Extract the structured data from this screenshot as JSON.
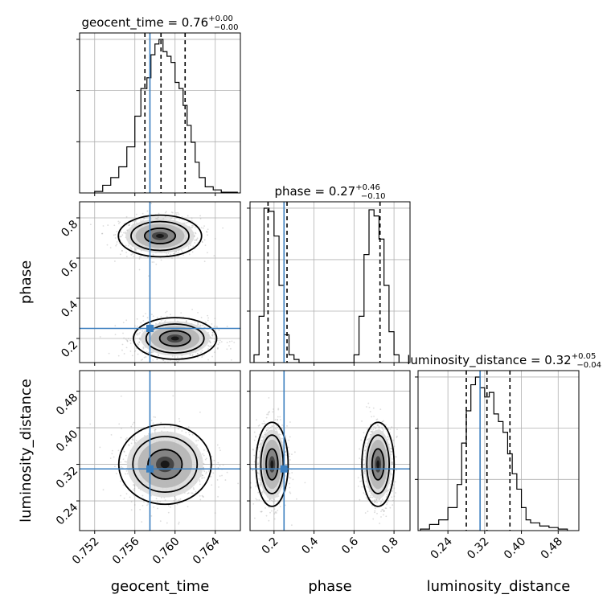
{
  "chart_data": {
    "type": "corner",
    "parameters": [
      "geocent_time",
      "phase",
      "luminosity_distance"
    ],
    "axis_labels": {
      "geocent_time": "geocent_time",
      "phase": "phase",
      "luminosity_distance": "luminosity_distance"
    },
    "titles": [
      {
        "param": "geocent_time",
        "text": "geocent_time = 0.76",
        "plus": "+0.00",
        "minus": "−0.00"
      },
      {
        "param": "phase",
        "text": "phase = 0.27",
        "plus": "+0.46",
        "minus": "−0.10"
      },
      {
        "param": "luminosity_distance",
        "text": "luminosity_distance = 0.32",
        "plus": "+0.05",
        "minus": "−0.04"
      }
    ],
    "ranges": {
      "geocent_time": [
        0.7505,
        0.7665
      ],
      "phase": [
        0.08,
        0.88
      ],
      "luminosity_distance": [
        0.175,
        0.525
      ]
    },
    "ticks": {
      "geocent_time": [
        {
          "v": 0.752,
          "l": "0.752"
        },
        {
          "v": 0.756,
          "l": "0.756"
        },
        {
          "v": 0.76,
          "l": "0.760"
        },
        {
          "v": 0.764,
          "l": "0.764"
        }
      ],
      "phase": [
        {
          "v": 0.2,
          "l": "0.2"
        },
        {
          "v": 0.4,
          "l": "0.4"
        },
        {
          "v": 0.6,
          "l": "0.6"
        },
        {
          "v": 0.8,
          "l": "0.8"
        }
      ],
      "luminosity_distance": [
        {
          "v": 0.24,
          "l": "0.24"
        },
        {
          "v": 0.32,
          "l": "0.32"
        },
        {
          "v": 0.4,
          "l": "0.40"
        },
        {
          "v": 0.48,
          "l": "0.48"
        }
      ]
    },
    "truths": {
      "geocent_time": 0.7575,
      "phase": 0.25,
      "luminosity_distance": 0.31
    },
    "quantiles": {
      "geocent_time": [
        0.757,
        0.7586,
        0.761
      ],
      "phase": [
        0.17,
        0.265,
        0.73
      ],
      "luminosity_distance": [
        0.28,
        0.325,
        0.375
      ]
    },
    "histograms": {
      "geocent_time": {
        "edges": [
          0.752,
          0.7528,
          0.7536,
          0.7544,
          0.7552,
          0.756,
          0.7566,
          0.7572,
          0.7576,
          0.758,
          0.7584,
          0.7588,
          0.7592,
          0.7596,
          0.76,
          0.7604,
          0.7608,
          0.7612,
          0.7616,
          0.762,
          0.7624,
          0.763,
          0.7638,
          0.7646,
          0.7654,
          0.7662
        ],
        "counts": [
          0.01,
          0.05,
          0.1,
          0.17,
          0.3,
          0.5,
          0.68,
          0.75,
          0.9,
          0.97,
          1.0,
          0.92,
          0.89,
          0.85,
          0.72,
          0.68,
          0.57,
          0.44,
          0.33,
          0.2,
          0.1,
          0.04,
          0.02,
          0.005,
          0.005
        ]
      },
      "phase": {
        "edges": [
          0.1,
          0.125,
          0.15,
          0.175,
          0.2,
          0.225,
          0.25,
          0.275,
          0.3,
          0.325,
          0.35,
          0.6,
          0.625,
          0.65,
          0.675,
          0.7,
          0.725,
          0.75,
          0.775,
          0.8,
          0.825
        ],
        "counts": [
          0.05,
          0.3,
          1.0,
          0.98,
          0.82,
          0.5,
          0.18,
          0.05,
          0.02,
          0.0,
          0.0,
          0.05,
          0.3,
          0.7,
          0.99,
          0.95,
          0.8,
          0.5,
          0.2,
          0.05
        ]
      },
      "luminosity_distance": {
        "edges": [
          0.18,
          0.2,
          0.22,
          0.24,
          0.26,
          0.27,
          0.28,
          0.29,
          0.3,
          0.31,
          0.32,
          0.33,
          0.34,
          0.35,
          0.36,
          0.37,
          0.38,
          0.39,
          0.4,
          0.41,
          0.42,
          0.44,
          0.46,
          0.48,
          0.5
        ],
        "counts": [
          0.01,
          0.04,
          0.07,
          0.15,
          0.3,
          0.57,
          0.78,
          0.95,
          1.0,
          0.93,
          0.87,
          0.9,
          0.76,
          0.71,
          0.64,
          0.5,
          0.37,
          0.27,
          0.15,
          0.07,
          0.05,
          0.03,
          0.02,
          0.01
        ]
      }
    },
    "contours_2d": [
      {
        "x": "geocent_time",
        "y": "phase",
        "modes": [
          {
            "cx": 0.7585,
            "cy": 0.71,
            "sx": 0.0018,
            "sy": 0.045,
            "peak": 0.9
          },
          {
            "cx": 0.76,
            "cy": 0.2,
            "sx": 0.0018,
            "sy": 0.045,
            "peak": 1.0
          }
        ]
      },
      {
        "x": "geocent_time",
        "y": "luminosity_distance",
        "modes": [
          {
            "cx": 0.759,
            "cy": 0.32,
            "sx": 0.002,
            "sy": 0.038,
            "peak": 1.0
          }
        ]
      },
      {
        "x": "phase",
        "y": "luminosity_distance",
        "modes": [
          {
            "cx": 0.19,
            "cy": 0.32,
            "sx": 0.035,
            "sy": 0.04,
            "peak": 1.0
          },
          {
            "cx": 0.72,
            "cy": 0.32,
            "sx": 0.035,
            "sy": 0.04,
            "peak": 1.0
          }
        ]
      }
    ],
    "contour_levels": [
      0.39,
      0.86,
      0.99
    ],
    "colors": {
      "truth": "#3b7fbf",
      "line": "#000000",
      "grid": "#b0b0b0",
      "density": "#7f7f7f"
    }
  }
}
